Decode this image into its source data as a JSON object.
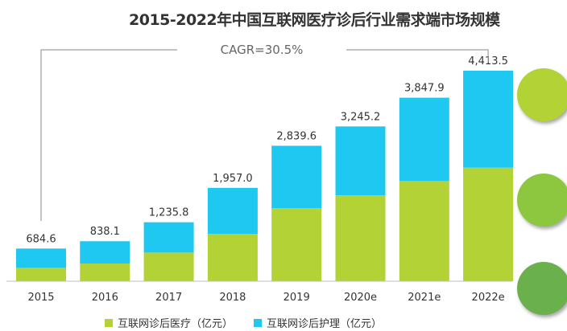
{
  "chart_data": {
    "type": "bar",
    "stacked": true,
    "title": "2015-2022年中国互联网医疗诊后行业需求端市场规模",
    "annotation": "CAGR=30.5%",
    "categories": [
      "2015",
      "2016",
      "2017",
      "2018",
      "2019",
      "2020e",
      "2021e",
      "2022e"
    ],
    "totals": [
      684.6,
      838.1,
      1235.8,
      1957.0,
      2839.6,
      3245.2,
      3847.9,
      4413.5
    ],
    "total_labels": [
      "684.6",
      "838.1",
      "1,235.8",
      "1,957.0",
      "2,839.6",
      "3,245.2",
      "3,847.9",
      "4,413.5"
    ],
    "series": [
      {
        "name": "互联网诊后医疗（亿元）",
        "color": "#b2d235",
        "values": [
          280,
          370,
          600,
          990,
          1530,
          1800,
          2100,
          2380
        ]
      },
      {
        "name": "互联网诊后护理（亿元）",
        "color": "#1ec8f0",
        "values": [
          404.6,
          468.1,
          635.8,
          967.0,
          1309.6,
          1445.2,
          1747.9,
          2033.5
        ]
      }
    ],
    "ylim": [
      0,
      4650
    ]
  },
  "decor_colors": [
    "#b2d235",
    "#8dc63f",
    "#6ab04c"
  ]
}
